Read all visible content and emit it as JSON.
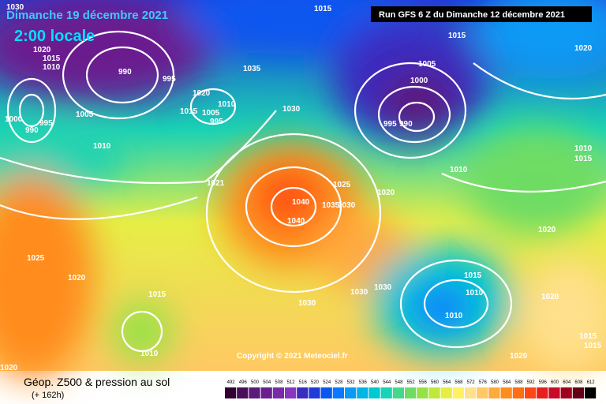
{
  "header": {
    "date": "Dimanche 19 décembre 2021",
    "time": "2:00 locale",
    "run": "Run GFS 6 Z du Dimanche 12 décembre 2021"
  },
  "copyright": "Copyright © 2021 Meteociel.fr",
  "footer": {
    "title": "Géop. Z500 & pression au sol",
    "subtitle": "(+ 162h)"
  },
  "legend": {
    "values": [
      492,
      496,
      500,
      504,
      508,
      512,
      516,
      520,
      524,
      528,
      532,
      536,
      540,
      544,
      548,
      552,
      556,
      560,
      564,
      568,
      572,
      576,
      580,
      584,
      588,
      592,
      596,
      600,
      604,
      608,
      612
    ],
    "colors": [
      "#330033",
      "#4b0d5a",
      "#5c1a7a",
      "#6a1f8f",
      "#7a2aa8",
      "#8a34c0",
      "#3a2cc0",
      "#1e3cd8",
      "#0a56f0",
      "#0a78ff",
      "#0a9af5",
      "#00b4e6",
      "#00c8d2",
      "#1ad2b4",
      "#46d68c",
      "#6edc64",
      "#96e246",
      "#bee83c",
      "#e6ee46",
      "#fff064",
      "#ffe08c",
      "#ffc864",
      "#ffaa3c",
      "#ff8c1e",
      "#ff6e14",
      "#ff4614",
      "#e61e1e",
      "#c80a28",
      "#a0001e",
      "#640014",
      "#000000"
    ]
  },
  "isobar_labels": [
    "1030",
    "1015",
    "1015",
    "1020",
    "1020",
    "1015",
    "1010",
    "990",
    "995",
    "1035",
    "1005",
    "1000",
    "1030",
    "1000",
    "995",
    "990",
    "1005",
    "1010",
    "1015",
    "1020",
    "1005",
    "1010",
    "995",
    "995",
    "990",
    "1010",
    "1021",
    "1025",
    "1020",
    "1040",
    "1040",
    "1035",
    "1030",
    "1025",
    "1020",
    "1020",
    "1015",
    "1030",
    "1030",
    "1015",
    "1010",
    "1010",
    "1030",
    "1020",
    "1010",
    "1020",
    "1020",
    "1015",
    "1010",
    "1015",
    "1015"
  ]
}
